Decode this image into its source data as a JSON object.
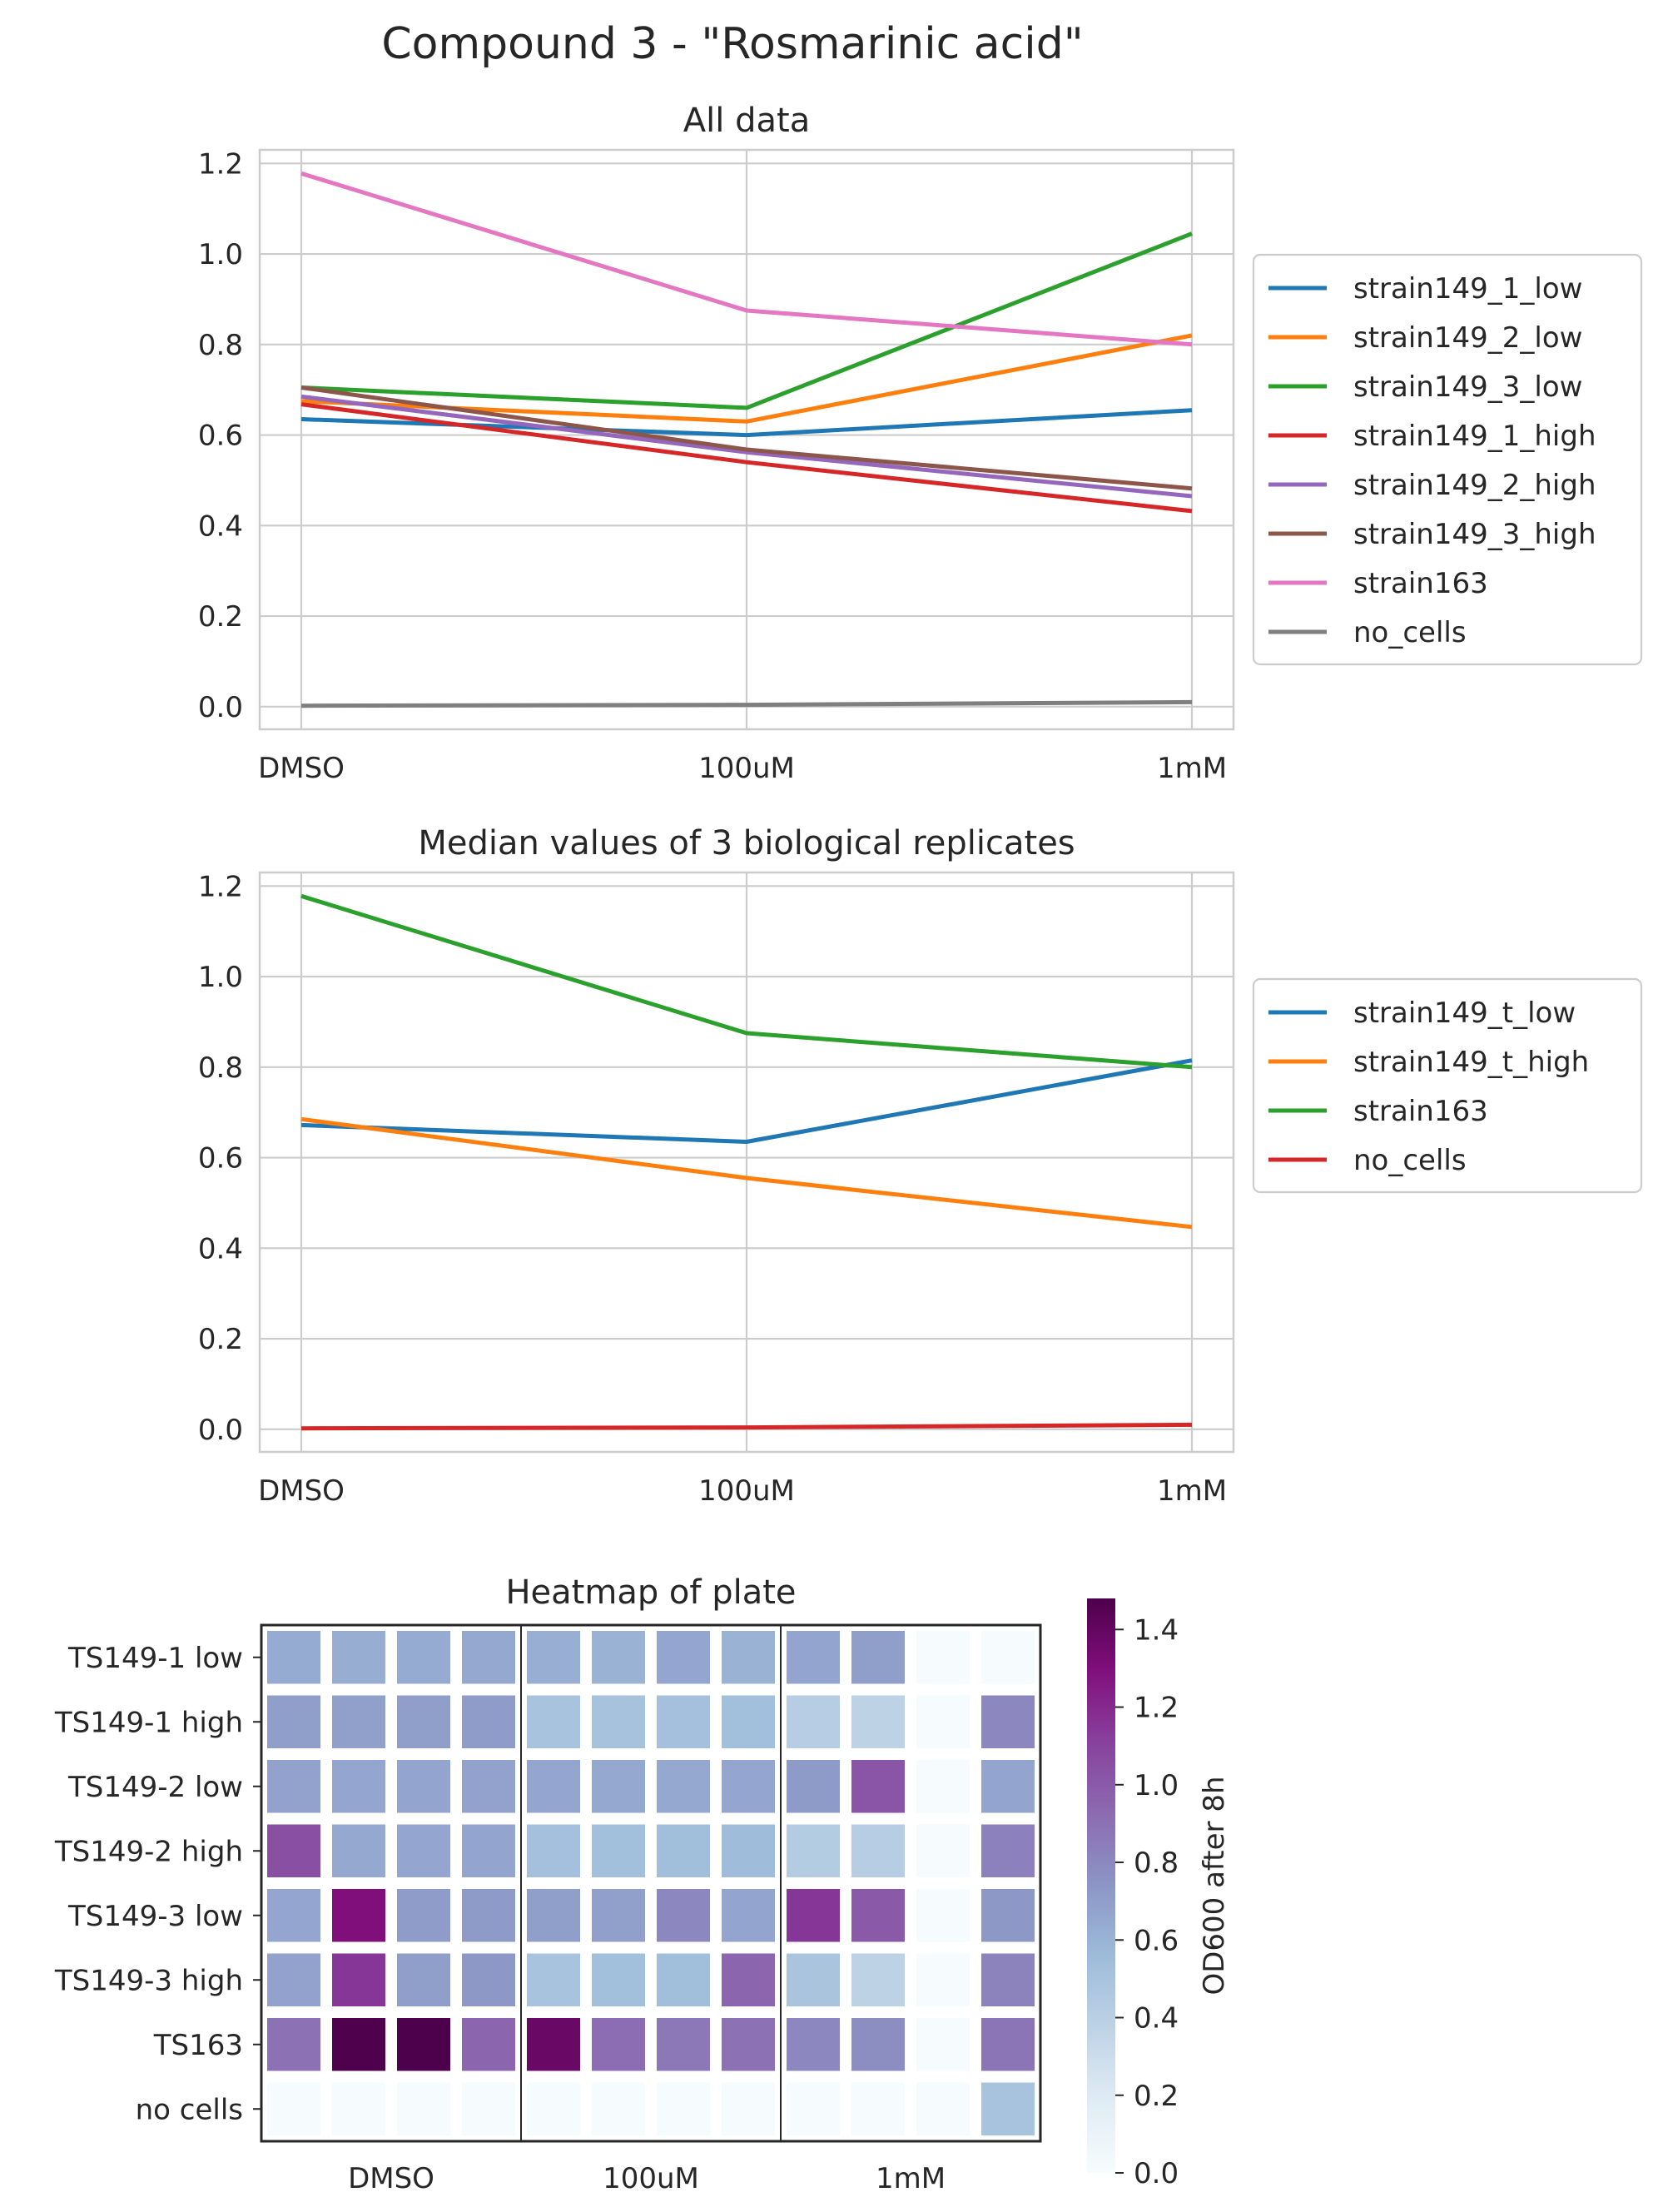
{
  "figure": {
    "title": "Compound 3 - \"Rosmarinic acid\""
  },
  "chart_data": [
    {
      "type": "line",
      "title": "All data",
      "xlabel": "",
      "ylabel": "",
      "categories": [
        "DMSO",
        "100uM",
        "1mM"
      ],
      "ylim": [
        -0.05,
        1.23
      ],
      "yticks": [
        "0.0",
        "0.2",
        "0.4",
        "0.6",
        "0.8",
        "1.0",
        "1.2"
      ],
      "grid": true,
      "legend_position": "outside-right",
      "series": [
        {
          "name": "strain149_1_low",
          "color": "#1f77b4",
          "values": [
            0.635,
            0.6,
            0.655
          ]
        },
        {
          "name": "strain149_2_low",
          "color": "#ff7f0e",
          "values": [
            0.675,
            0.63,
            0.82
          ]
        },
        {
          "name": "strain149_3_low",
          "color": "#2ca02c",
          "values": [
            0.705,
            0.66,
            1.045
          ]
        },
        {
          "name": "strain149_1_high",
          "color": "#d62728",
          "values": [
            0.668,
            0.54,
            0.432
          ]
        },
        {
          "name": "strain149_2_high",
          "color": "#9467bd",
          "values": [
            0.685,
            0.562,
            0.465
          ]
        },
        {
          "name": "strain149_3_high",
          "color": "#8c564b",
          "values": [
            0.705,
            0.568,
            0.482
          ]
        },
        {
          "name": "strain163",
          "color": "#e377c2",
          "values": [
            1.178,
            0.875,
            0.8
          ]
        },
        {
          "name": "no_cells",
          "color": "#7f7f7f",
          "values": [
            0.002,
            0.004,
            0.01
          ]
        }
      ]
    },
    {
      "type": "line",
      "title": "Median values of 3 biological replicates",
      "xlabel": "",
      "ylabel": "",
      "categories": [
        "DMSO",
        "100uM",
        "1mM"
      ],
      "ylim": [
        -0.05,
        1.23
      ],
      "yticks": [
        "0.0",
        "0.2",
        "0.4",
        "0.6",
        "0.8",
        "1.0",
        "1.2"
      ],
      "grid": true,
      "legend_position": "outside-right",
      "series": [
        {
          "name": "strain149_t_low",
          "color": "#1f77b4",
          "values": [
            0.672,
            0.635,
            0.815
          ]
        },
        {
          "name": "strain149_t_high",
          "color": "#ff7f0e",
          "values": [
            0.685,
            0.555,
            0.447
          ]
        },
        {
          "name": "strain163",
          "color": "#2ca02c",
          "values": [
            1.178,
            0.875,
            0.8
          ]
        },
        {
          "name": "no_cells",
          "color": "#d62728",
          "values": [
            0.002,
            0.004,
            0.01
          ]
        }
      ]
    },
    {
      "type": "heatmap",
      "title": "Heatmap of plate",
      "rows": [
        "TS149-1 low",
        "TS149-1 high",
        "TS149-2 low",
        "TS149-2 high",
        "TS149-3 low",
        "TS149-3 high",
        "TS163",
        "no cells"
      ],
      "column_groups": [
        "DMSO",
        "100uM",
        "1mM"
      ],
      "columns_per_group": 4,
      "colorbar": {
        "label": "OD600 after 8h",
        "range": [
          0.0,
          1.48
        ],
        "ticks": [
          "0.0",
          "0.2",
          "0.4",
          "0.6",
          "0.8",
          "1.0",
          "1.2",
          "1.4"
        ],
        "colormap": "BuPu"
      },
      "values": [
        [
          0.64,
          0.63,
          0.64,
          0.65,
          0.62,
          0.6,
          0.66,
          0.6,
          0.67,
          0.7,
          0.01,
          0.01
        ],
        [
          0.7,
          0.69,
          0.7,
          0.71,
          0.5,
          0.51,
          0.52,
          0.53,
          0.42,
          0.38,
          0.01,
          0.8
        ],
        [
          0.68,
          0.66,
          0.67,
          0.68,
          0.66,
          0.65,
          0.65,
          0.66,
          0.72,
          1.02,
          0.01,
          0.67
        ],
        [
          1.05,
          0.65,
          0.66,
          0.67,
          0.52,
          0.53,
          0.54,
          0.55,
          0.43,
          0.42,
          0.01,
          0.83
        ],
        [
          0.66,
          1.3,
          0.71,
          0.72,
          0.7,
          0.69,
          0.8,
          0.67,
          1.15,
          1.0,
          0.01,
          0.73
        ],
        [
          0.68,
          1.15,
          0.7,
          0.73,
          0.5,
          0.53,
          0.54,
          0.95,
          0.49,
          0.38,
          0.01,
          0.82
        ],
        [
          0.9,
          1.47,
          1.48,
          0.95,
          1.38,
          0.92,
          0.87,
          0.9,
          0.8,
          0.78,
          0.01,
          0.88
        ],
        [
          0.01,
          0.01,
          0.01,
          0.01,
          0.01,
          0.01,
          0.01,
          0.01,
          0.01,
          0.01,
          0.01,
          0.5
        ]
      ]
    }
  ]
}
